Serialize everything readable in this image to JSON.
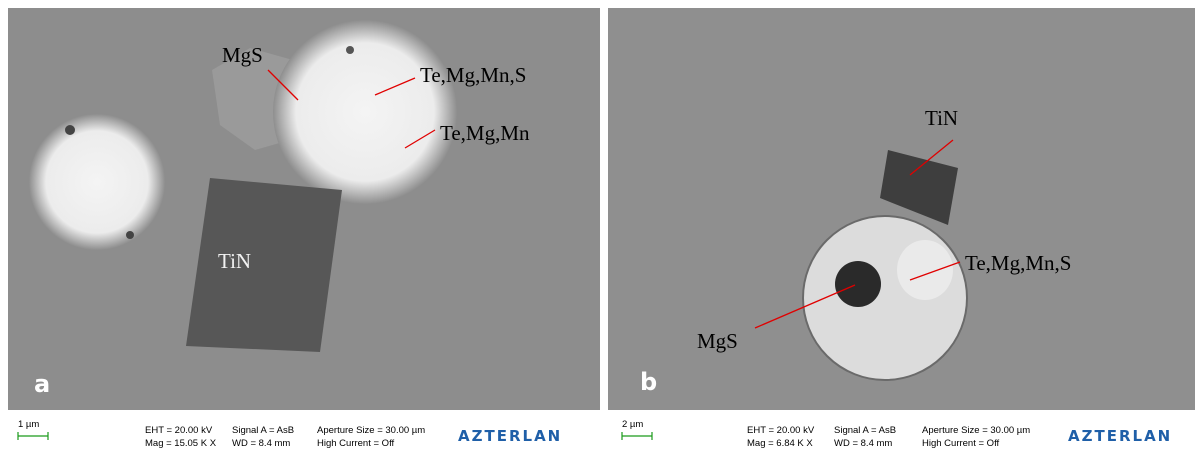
{
  "panels": [
    {
      "letter": "a",
      "annotations": [
        "MgS",
        "Te,Mg,Mn,S",
        "Te,Mg,Mn",
        "TiN"
      ],
      "scale_bar": "1 µm",
      "info": {
        "eht": "EHT = 20.00 kV",
        "signal": "Signal A = AsB",
        "aperture": "Aperture Size = 30.00 µm",
        "mag": "Mag =  15.05 K X",
        "wd": "WD =  8.4 mm",
        "current": "High Current = Off"
      },
      "logo": "AZTERLAN"
    },
    {
      "letter": "b",
      "annotations": [
        "TiN",
        "Te,Mg,Mn,S",
        "MgS"
      ],
      "scale_bar": "2 µm",
      "info": {
        "eht": "EHT = 20.00 kV",
        "signal": "Signal A = AsB",
        "aperture": "Aperture Size = 30.00 µm",
        "mag": "Mag =   6.84 K X",
        "wd": "WD =  8.4 mm",
        "current": "High Current = Off"
      },
      "logo": "AZTERLAN"
    }
  ]
}
